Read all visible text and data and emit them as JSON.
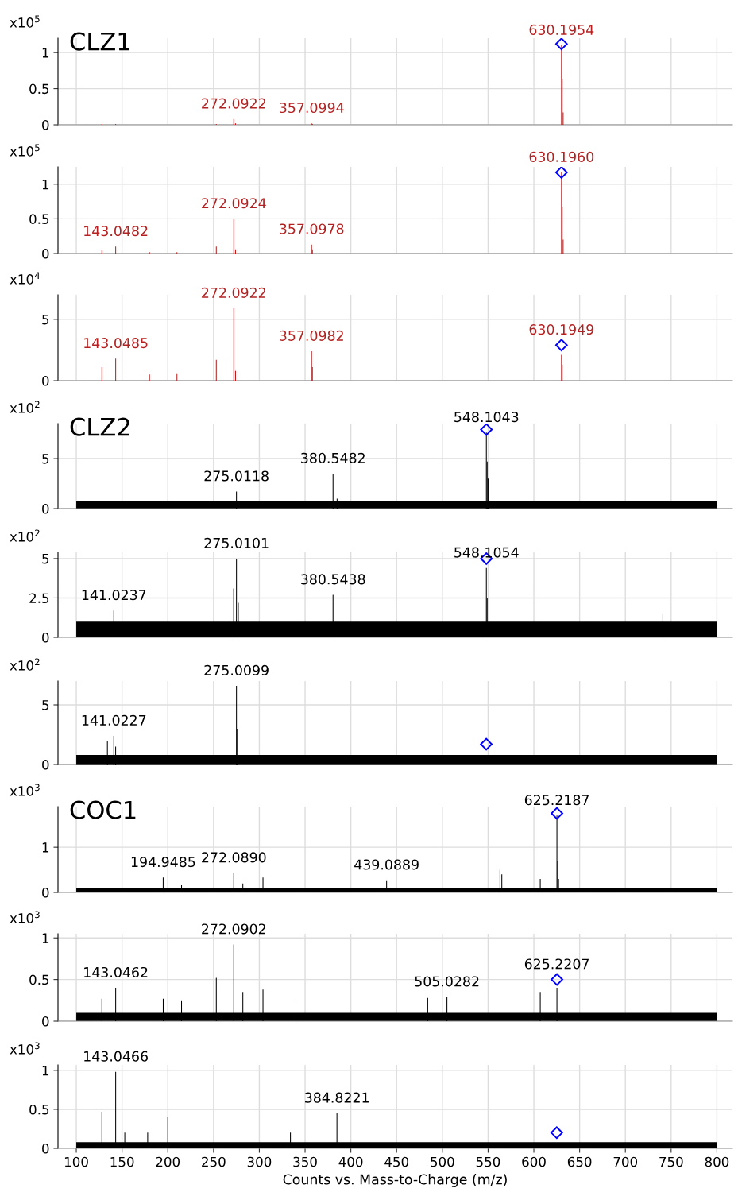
{
  "chart_data": [
    {
      "type": "bar",
      "title": "CLZ1",
      "ylabel": "x10$^{5}$",
      "xlim": [
        80,
        817
      ],
      "xticks": [
        100,
        150,
        200,
        250,
        300,
        350,
        400,
        450,
        500,
        550,
        600,
        650,
        700,
        750,
        800
      ],
      "ylim": [
        0,
        1.2
      ],
      "yticks": [
        0,
        0.5,
        1
      ],
      "grid": true,
      "tick_labels": "y",
      "series": [
        {
          "type": "bar",
          "color": "#b22222",
          "x": [
            128,
            143,
            253,
            272.0922,
            274,
            357.0994,
            358,
            630.1954,
            631,
            632
          ],
          "values": [
            0.01,
            0.01,
            0.01,
            0.08,
            0.02,
            0.02,
            0.01,
            1.1,
            0.63,
            0.17
          ]
        },
        {
          "type": "scatter",
          "marker": "diamond",
          "color": "#0000ff",
          "x": [
            630.1954
          ],
          "values": [
            1.12
          ]
        }
      ],
      "annotations": [
        {
          "text": "630.1954",
          "x": 630.1954,
          "y": 1.1
        },
        {
          "text": "272.0922",
          "x": 272.0922,
          "y": 0.08
        },
        {
          "text": "357.0994",
          "x": 357.0994,
          "y": 0.02
        }
      ]
    },
    {
      "type": "bar",
      "ylabel": "x10$^{5}$",
      "xlim": [
        80,
        817
      ],
      "xticks": [
        100,
        150,
        200,
        250,
        300,
        350,
        400,
        450,
        500,
        550,
        600,
        650,
        700,
        750,
        800
      ],
      "ylim": [
        0,
        1.25
      ],
      "yticks": [
        0,
        0.5,
        1
      ],
      "grid": true,
      "tick_labels": "y",
      "series": [
        {
          "type": "bar",
          "color": "#b22222",
          "x": [
            128,
            143.0482,
            180,
            210,
            253,
            272.0924,
            274,
            357.0978,
            358,
            630.196,
            631,
            632
          ],
          "values": [
            0.05,
            0.1,
            0.02,
            0.02,
            0.1,
            0.5,
            0.06,
            0.13,
            0.06,
            1.17,
            0.67,
            0.2
          ]
        },
        {
          "type": "scatter",
          "marker": "diamond",
          "color": "#0000ff",
          "x": [
            630.196
          ],
          "values": [
            1.17
          ]
        }
      ],
      "annotations": [
        {
          "text": "630.1960",
          "x": 630.196,
          "y": 1.17
        },
        {
          "text": "272.0924",
          "x": 272.0924,
          "y": 0.5
        },
        {
          "text": "143.0482",
          "x": 143.0482,
          "y": 0.1
        },
        {
          "text": "357.0978",
          "x": 357.0978,
          "y": 0.13
        }
      ]
    },
    {
      "type": "bar",
      "ylabel": "x10$^{4}$",
      "xlim": [
        80,
        817
      ],
      "xticks": [
        100,
        150,
        200,
        250,
        300,
        350,
        400,
        450,
        500,
        550,
        600,
        650,
        700,
        750,
        800
      ],
      "ylim": [
        0,
        7
      ],
      "yticks": [
        0,
        5
      ],
      "grid": true,
      "tick_labels": "y",
      "series": [
        {
          "type": "bar",
          "color": "#b22222",
          "x": [
            128,
            143.0485,
            180,
            210,
            253,
            272.0922,
            274,
            357.0982,
            358,
            630.1949,
            631
          ],
          "values": [
            1.1,
            1.8,
            0.5,
            0.6,
            1.7,
            5.9,
            0.8,
            2.4,
            1.1,
            2.1,
            1.3
          ]
        },
        {
          "type": "scatter",
          "marker": "diamond",
          "color": "#0000ff",
          "x": [
            630.1949
          ],
          "values": [
            2.9
          ]
        }
      ],
      "annotations": [
        {
          "text": "272.0922",
          "x": 272.0922,
          "y": 5.9
        },
        {
          "text": "143.0485",
          "x": 143.0485,
          "y": 1.8
        },
        {
          "text": "357.0982",
          "x": 357.0982,
          "y": 2.4
        },
        {
          "text": "630.1949",
          "x": 630.1949,
          "y": 2.9
        }
      ]
    },
    {
      "type": "bar",
      "title": "CLZ2",
      "ylabel": "x10$^{2}$",
      "xlim": [
        80,
        817
      ],
      "xticks": [
        100,
        150,
        200,
        250,
        300,
        350,
        400,
        450,
        500,
        550,
        600,
        650,
        700,
        750,
        800
      ],
      "ylim": [
        0,
        8.5
      ],
      "yticks": [
        0,
        5
      ],
      "grid": true,
      "tick_labels": "y",
      "series": [
        {
          "type": "area",
          "color": "#000000",
          "x": [
            100,
            800
          ],
          "values": [
            0.8,
            0.8
          ]
        },
        {
          "type": "bar",
          "color": "#000000",
          "x": [
            275.0118,
            380.5482,
            385,
            548.1043,
            549,
            550
          ],
          "values": [
            1.7,
            3.5,
            1.0,
            7.6,
            4.7,
            3
          ]
        },
        {
          "type": "scatter",
          "marker": "diamond",
          "color": "#0000ff",
          "x": [
            548.1043
          ],
          "values": [
            7.9
          ]
        }
      ],
      "annotations": [
        {
          "text": "548.1043",
          "x": 548.1043,
          "y": 7.6
        },
        {
          "text": "380.5482",
          "x": 380.5482,
          "y": 3.5
        },
        {
          "text": "275.0118",
          "x": 275.0118,
          "y": 1.7
        }
      ]
    },
    {
      "type": "bar",
      "ylabel": "x10$^{2}$",
      "xlim": [
        80,
        817
      ],
      "xticks": [
        100,
        150,
        200,
        250,
        300,
        350,
        400,
        450,
        500,
        550,
        600,
        650,
        700,
        750,
        800
      ],
      "ylim": [
        0,
        5.4
      ],
      "yticks": [
        0,
        2.5,
        5
      ],
      "grid": true,
      "tick_labels": "y",
      "series": [
        {
          "type": "area",
          "color": "#000000",
          "x": [
            100,
            800
          ],
          "values": [
            1.0,
            1.0
          ]
        },
        {
          "type": "bar",
          "color": "#000000",
          "x": [
            141.0237,
            272,
            275.0101,
            277,
            380.5438,
            548.1054,
            549,
            741
          ],
          "values": [
            1.7,
            3.1,
            5.0,
            2.2,
            2.7,
            4.4,
            2.5,
            1.5
          ]
        },
        {
          "type": "scatter",
          "marker": "diamond",
          "color": "#0000ff",
          "x": [
            548.1054
          ],
          "values": [
            5.0
          ]
        }
      ],
      "annotations": [
        {
          "text": "275.0101",
          "x": 275.0101,
          "y": 5.0
        },
        {
          "text": "380.5438",
          "x": 380.5438,
          "y": 2.7
        },
        {
          "text": "548.1054",
          "x": 548.1054,
          "y": 4.4
        },
        {
          "text": "141.0237",
          "x": 141.0237,
          "y": 1.7
        }
      ]
    },
    {
      "type": "bar",
      "ylabel": "x10$^{2}$",
      "xlim": [
        80,
        817
      ],
      "xticks": [
        100,
        150,
        200,
        250,
        300,
        350,
        400,
        450,
        500,
        550,
        600,
        650,
        700,
        750,
        800
      ],
      "ylim": [
        0,
        7
      ],
      "yticks": [
        0,
        5
      ],
      "grid": true,
      "tick_labels": "y",
      "series": [
        {
          "type": "area",
          "color": "#000000",
          "x": [
            100,
            800
          ],
          "values": [
            0.8,
            0.8
          ]
        },
        {
          "type": "bar",
          "color": "#000000",
          "x": [
            134,
            141.0227,
            143,
            275.0099,
            276
          ],
          "values": [
            2.0,
            2.4,
            1.5,
            6.6,
            3.0
          ]
        },
        {
          "type": "scatter",
          "marker": "diamond",
          "color": "#0000ff",
          "x": [
            548
          ],
          "values": [
            1.7
          ]
        }
      ],
      "annotations": [
        {
          "text": "275.0099",
          "x": 275.0099,
          "y": 6.6
        },
        {
          "text": "141.0227",
          "x": 141.0227,
          "y": 2.4
        }
      ]
    },
    {
      "type": "bar",
      "title": "COC1",
      "ylabel": "x10$^{3}$",
      "xlim": [
        80,
        817
      ],
      "xticks": [
        100,
        150,
        200,
        250,
        300,
        350,
        400,
        450,
        500,
        550,
        600,
        650,
        700,
        750,
        800
      ],
      "ylim": [
        0,
        1.9
      ],
      "yticks": [
        0,
        1
      ],
      "grid": true,
      "tick_labels": "y",
      "series": [
        {
          "type": "area",
          "color": "#000000",
          "x": [
            100,
            800
          ],
          "values": [
            0.1,
            0.1
          ]
        },
        {
          "type": "bar",
          "color": "#000000",
          "x": [
            194.9485,
            215,
            272.089,
            282,
            304,
            439.0889,
            563,
            565,
            607,
            625.2187,
            626,
            627
          ],
          "values": [
            0.33,
            0.17,
            0.43,
            0.2,
            0.33,
            0.27,
            0.5,
            0.4,
            0.3,
            1.7,
            0.7,
            0.3
          ]
        },
        {
          "type": "scatter",
          "marker": "diamond",
          "color": "#0000ff",
          "x": [
            625.2187
          ],
          "values": [
            1.75
          ]
        }
      ],
      "annotations": [
        {
          "text": "625.2187",
          "x": 625.2187,
          "y": 1.7
        },
        {
          "text": "194.9485",
          "x": 194.9485,
          "y": 0.33
        },
        {
          "text": "272.0890",
          "x": 272.089,
          "y": 0.43
        },
        {
          "text": "439.0889",
          "x": 439.0889,
          "y": 0.27
        }
      ]
    },
    {
      "type": "bar",
      "ylabel": "x10$^{3}$",
      "xlim": [
        80,
        817
      ],
      "xticks": [
        100,
        150,
        200,
        250,
        300,
        350,
        400,
        450,
        500,
        550,
        600,
        650,
        700,
        750,
        800
      ],
      "ylim": [
        0,
        1.05
      ],
      "yticks": [
        0,
        0.5,
        1
      ],
      "grid": true,
      "tick_labels": "y",
      "series": [
        {
          "type": "area",
          "color": "#000000",
          "x": [
            100,
            800
          ],
          "values": [
            0.1,
            0.1
          ]
        },
        {
          "type": "bar",
          "color": "#000000",
          "x": [
            128,
            143.0462,
            195,
            215,
            253,
            272.0902,
            282,
            304,
            340,
            484,
            505.0282,
            607,
            625.2207
          ],
          "values": [
            0.27,
            0.4,
            0.27,
            0.25,
            0.52,
            0.92,
            0.35,
            0.38,
            0.24,
            0.28,
            0.29,
            0.35,
            0.4
          ]
        },
        {
          "type": "scatter",
          "marker": "diamond",
          "color": "#0000ff",
          "x": [
            625.2207
          ],
          "values": [
            0.5
          ]
        }
      ],
      "annotations": [
        {
          "text": "143.0462",
          "x": 143.0462,
          "y": 0.4
        },
        {
          "text": "272.0902",
          "x": 272.0902,
          "y": 0.92
        },
        {
          "text": "505.0282",
          "x": 505.0282,
          "y": 0.29
        },
        {
          "text": "625.2207",
          "x": 625.2207,
          "y": 0.5
        }
      ]
    },
    {
      "type": "bar",
      "ylabel": "x10$^{3}$",
      "xlabel": "Counts vs. Mass-to-Charge (m/z)",
      "xlim": [
        80,
        817
      ],
      "xticks": [
        100,
        150,
        200,
        250,
        300,
        350,
        400,
        450,
        500,
        550,
        600,
        650,
        700,
        750,
        800
      ],
      "ylim": [
        0,
        1.07
      ],
      "yticks": [
        0,
        0.5,
        1
      ],
      "grid": true,
      "series": [
        {
          "type": "area",
          "color": "#000000",
          "x": [
            100,
            800
          ],
          "values": [
            0.08,
            0.08
          ]
        },
        {
          "type": "bar",
          "color": "#000000",
          "x": [
            128,
            143.0466,
            153,
            178,
            200,
            334,
            384.8221
          ],
          "values": [
            0.47,
            0.98,
            0.2,
            0.2,
            0.4,
            0.2,
            0.45
          ]
        },
        {
          "type": "scatter",
          "marker": "diamond",
          "color": "#0000ff",
          "x": [
            625
          ],
          "values": [
            0.2
          ]
        }
      ],
      "annotations": [
        {
          "text": "143.0466",
          "x": 143.0466,
          "y": 0.98
        },
        {
          "text": "384.8221",
          "x": 384.8221,
          "y": 0.45
        }
      ]
    }
  ]
}
